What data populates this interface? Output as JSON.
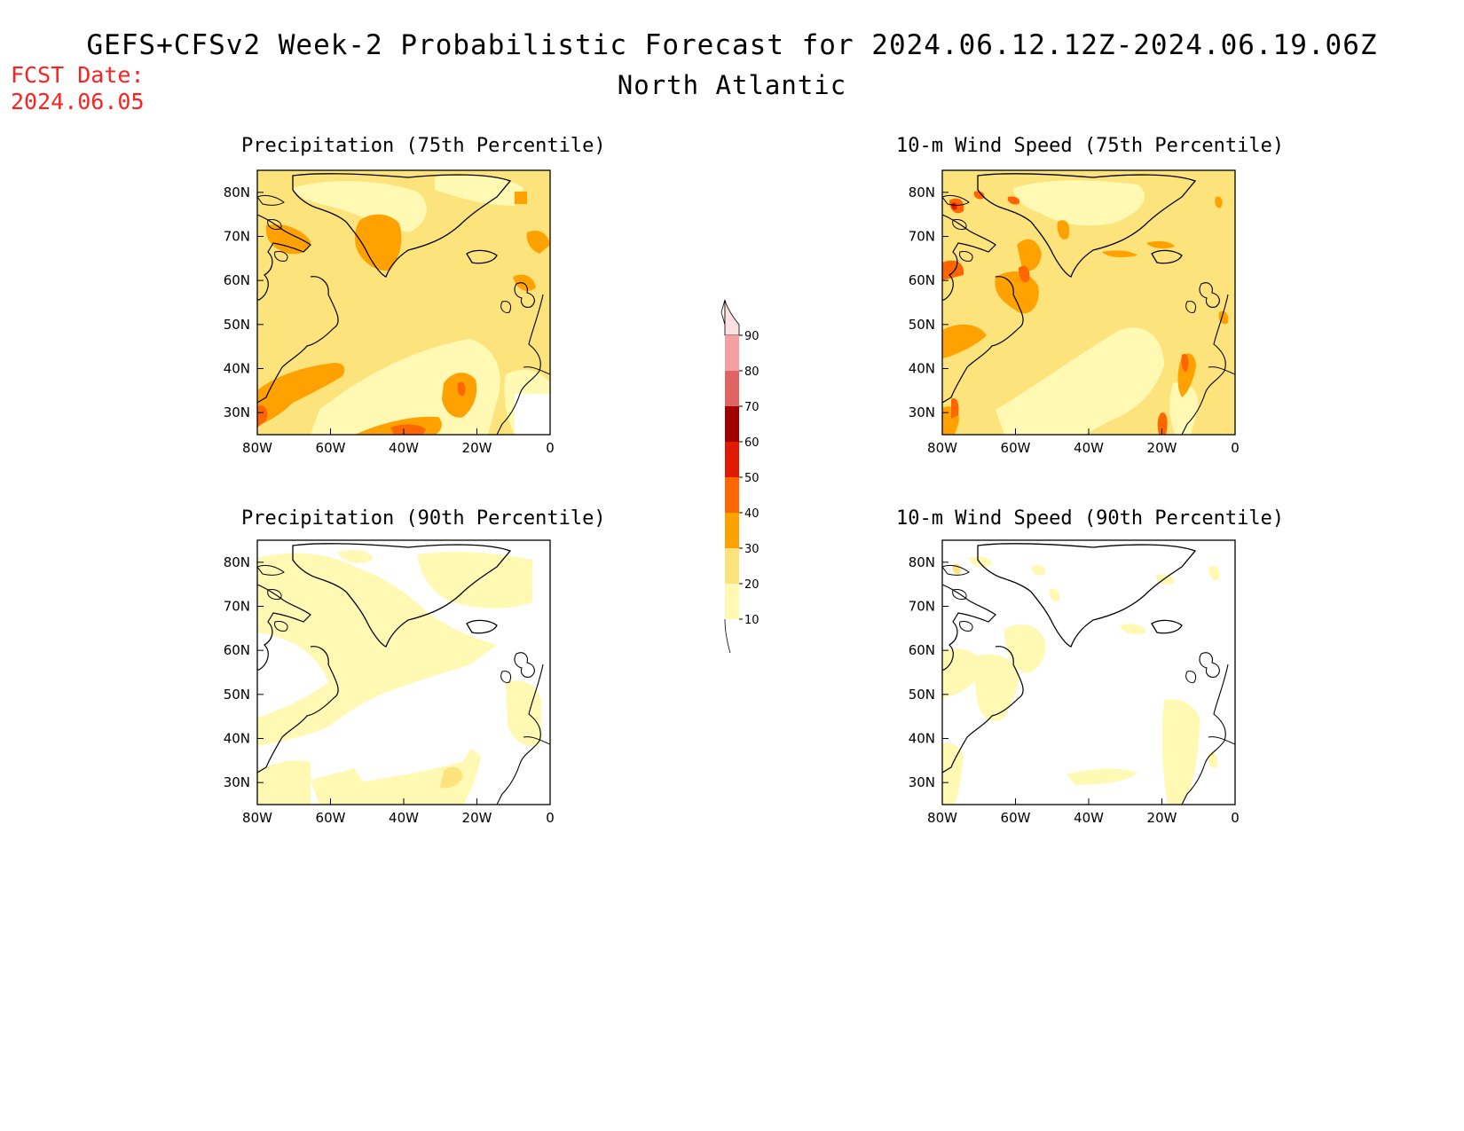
{
  "header": {
    "title": "GEFS+CFSv2 Week-2 Probabilistic Forecast for 2024.06.12.12Z-2024.06.19.06Z",
    "subtitle": "North Atlantic",
    "fcst_label": "FCST Date:",
    "fcst_value": "2024.06.05"
  },
  "axes": {
    "lat_ticks": [
      "30N",
      "40N",
      "50N",
      "60N",
      "70N",
      "80N"
    ],
    "lon_ticks": [
      "80W",
      "60W",
      "40W",
      "20W",
      "0"
    ],
    "lat_range": [
      25,
      85
    ],
    "lon_range": [
      -80,
      0
    ]
  },
  "panels": [
    {
      "id": "precip75",
      "title": "Precipitation (75th Percentile)"
    },
    {
      "id": "wind75",
      "title": "10-m Wind Speed (75th Percentile)"
    },
    {
      "id": "precip90",
      "title": "Precipitation (90th Percentile)"
    },
    {
      "id": "wind90",
      "title": "10-m Wind Speed (90th Percentile)"
    }
  ],
  "colorbar": {
    "labels": [
      "90",
      "80",
      "70",
      "60",
      "50",
      "40",
      "30",
      "20",
      "10"
    ],
    "colors": {
      "c10": "#fff9b4",
      "c20": "#fde37c",
      "c30": "#ffa200",
      "c40": "#ff6600",
      "c50": "#e21800",
      "c60": "#a00000",
      "c70": "#e06464",
      "c80": "#f4a0a0",
      "c90": "#fde0e0"
    }
  }
}
